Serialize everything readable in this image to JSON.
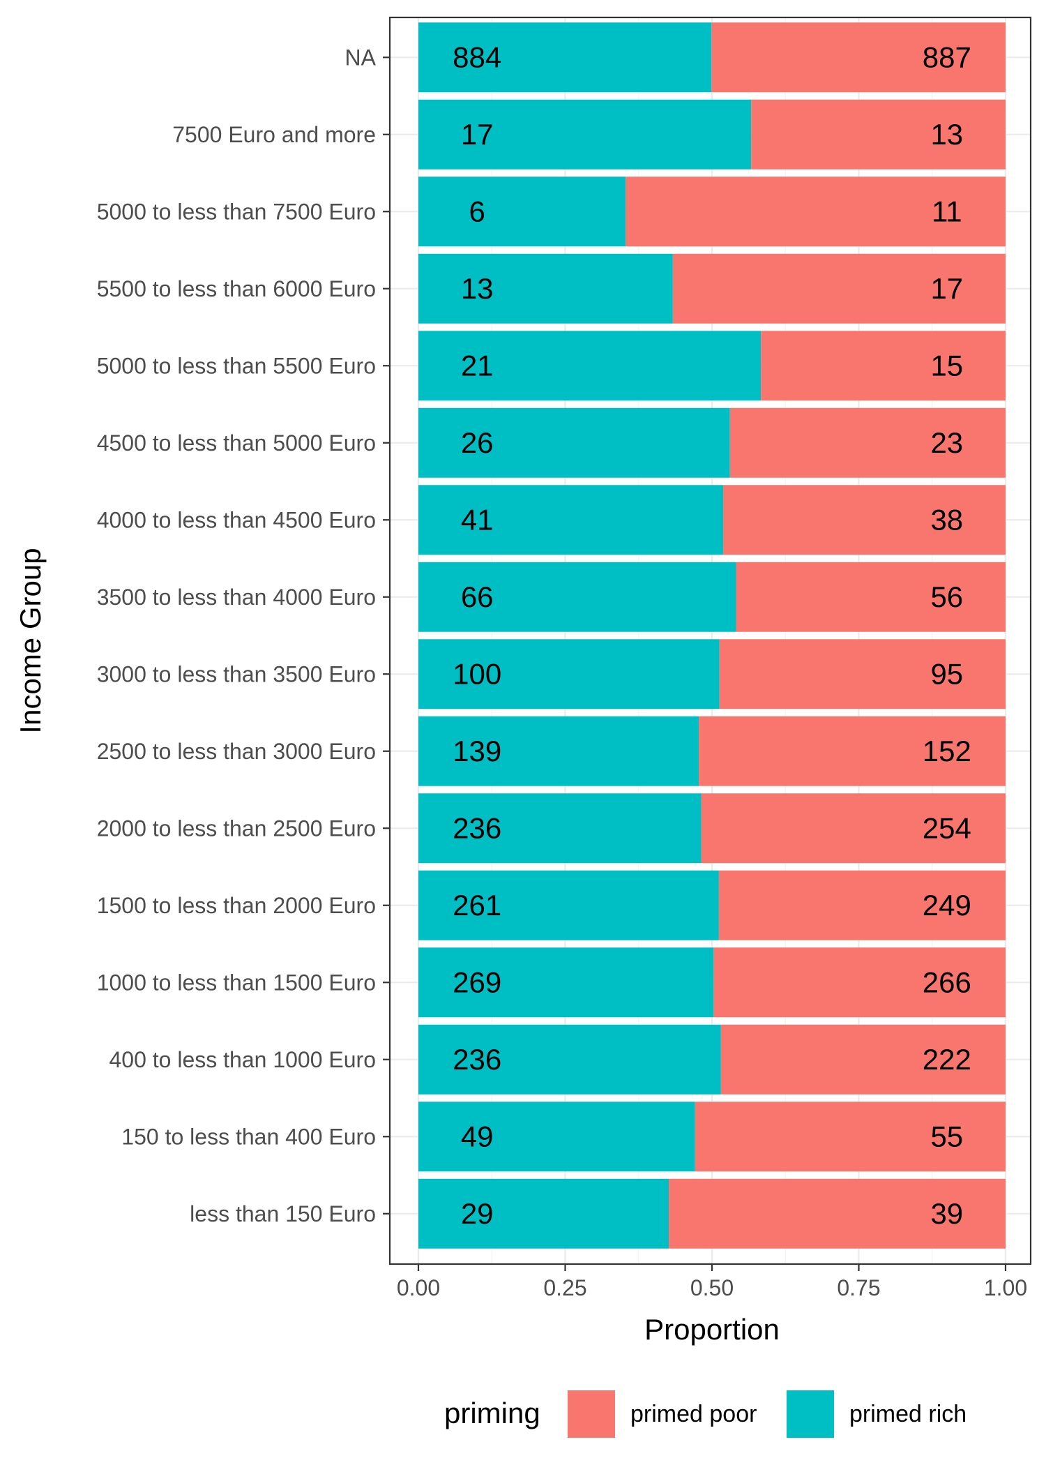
{
  "chart_data": {
    "type": "bar",
    "orientation": "horizontal",
    "stacked": "proportion",
    "xlabel": "Proportion",
    "ylabel": "Income Group",
    "xlim": [
      0,
      1
    ],
    "xticks": [
      "0.00",
      "0.25",
      "0.50",
      "0.75",
      "1.00"
    ],
    "xtick_values": [
      0,
      0.25,
      0.5,
      0.75,
      1.0
    ],
    "categories": [
      "NA",
      "7500 Euro and more",
      "5000 to less than 7500 Euro",
      "5500 to less than 6000 Euro",
      "5000 to less than 5500 Euro",
      "4500 to less than 5000 Euro",
      "4000 to less than 4500 Euro",
      "3500 to less than 4000 Euro",
      "3000 to less than 3500 Euro",
      "2500 to less than 3000 Euro",
      "2000 to less than 2500 Euro",
      "1500 to less than 2000 Euro",
      "1000 to less than 1500 Euro",
      "400 to less than 1000 Euro",
      "150 to less than 400 Euro",
      "less than 150 Euro"
    ],
    "series": [
      {
        "name": "primed rich",
        "color": "#00BFC4",
        "counts": [
          884,
          17,
          6,
          13,
          21,
          26,
          41,
          66,
          100,
          139,
          236,
          261,
          269,
          236,
          49,
          29
        ]
      },
      {
        "name": "primed poor",
        "color": "#F8766D",
        "counts": [
          887,
          13,
          11,
          17,
          15,
          23,
          38,
          56,
          95,
          152,
          254,
          249,
          266,
          222,
          55,
          39
        ]
      }
    ],
    "legend": {
      "title": "priming",
      "position": "bottom",
      "items": [
        {
          "label": "primed poor",
          "color": "#F8766D"
        },
        {
          "label": "primed rich",
          "color": "#00BFC4"
        }
      ]
    },
    "grid": true
  }
}
